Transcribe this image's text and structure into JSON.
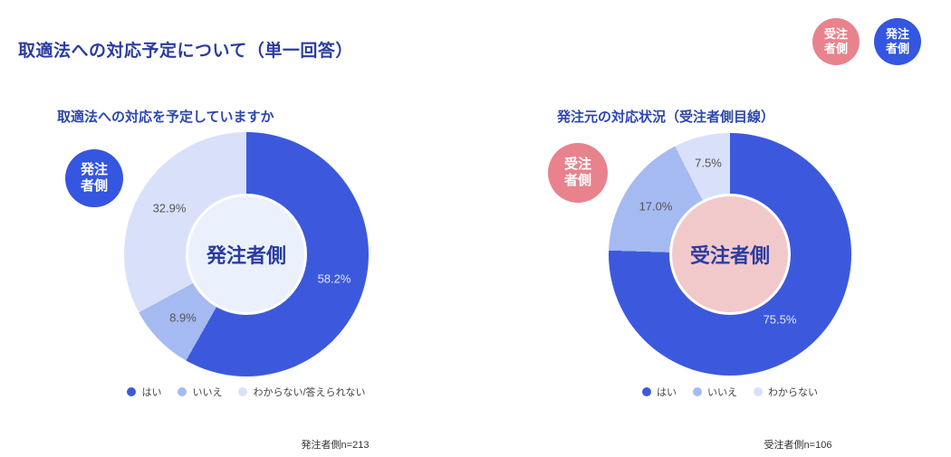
{
  "page": {
    "title": "取適法への対応予定について（単一回答）",
    "title_color": "#2B3C9F",
    "background": "#FFFFFF"
  },
  "header_badges": [
    {
      "name": "contractor-side",
      "label": "受注\n者側",
      "color": "#E8838D"
    },
    {
      "name": "orderer-side",
      "label": "発注\n者側",
      "color": "#3456E0"
    }
  ],
  "palette": {
    "yes_blue": "#3C59DD",
    "no_blue": "#A5BAF1",
    "unknown_blue": "#D9E1FA",
    "badge_blue": "#3456E0",
    "badge_pink": "#E8838D",
    "center_left": "#EAF1FC",
    "center_right": "#F2C9CB"
  },
  "chart_data": [
    {
      "type": "pie",
      "subtype": "donut",
      "title": "取適法への対応を予定していますか",
      "side_badge": "発注\n者側",
      "side_badge_color": "#3456E0",
      "center_label": "発注者側",
      "center_color": "#EAF1FC",
      "categories": [
        "はい",
        "いいえ",
        "わからない/答えられない"
      ],
      "values": [
        58.2,
        8.9,
        32.9
      ],
      "value_labels": [
        "58.2%",
        "8.9%",
        "32.9%"
      ],
      "value_label_colors": [
        "#E4E7EB",
        "#555555",
        "#555555"
      ],
      "colors": [
        "#3C59DD",
        "#A5BAF1",
        "#D9E1FA"
      ],
      "start_angle_deg": 0,
      "direction": "clockwise",
      "legend_position": "bottom",
      "note": "発注者側n=213"
    },
    {
      "type": "pie",
      "subtype": "donut",
      "title": "発注元の対応状況（受注者側目線）",
      "side_badge": "受注\n者側",
      "side_badge_color": "#E8838D",
      "center_label": "受注者側",
      "center_color": "#F2C9CB",
      "categories": [
        "はい",
        "いいえ",
        "わからない"
      ],
      "values": [
        75.5,
        17.0,
        7.5
      ],
      "value_labels": [
        "75.5%",
        "17.0%",
        "7.5%"
      ],
      "value_label_colors": [
        "#E4E7EB",
        "#555555",
        "#555555"
      ],
      "colors": [
        "#3C59DD",
        "#A5BAF1",
        "#D9E1FA"
      ],
      "start_angle_deg": 0,
      "direction": "clockwise",
      "legend_position": "bottom",
      "note": "受注者側n=106"
    }
  ]
}
